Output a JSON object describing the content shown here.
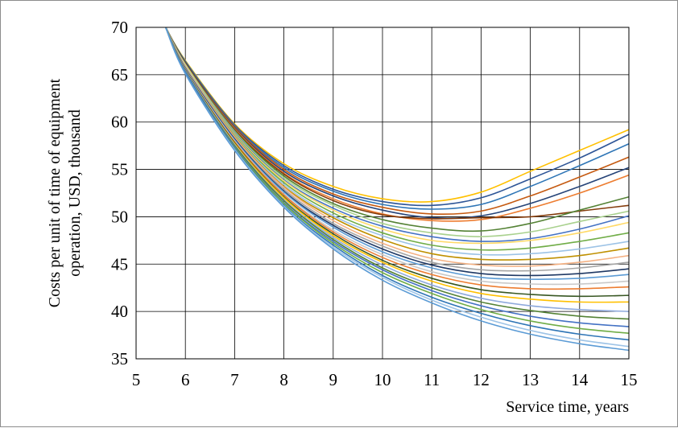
{
  "chart_data": {
    "type": "line",
    "xlabel": "Service time, years",
    "ylabel_line1": "Costs per unit of time of equipment",
    "ylabel_line2": "operation, USD, thousand",
    "xlim": [
      5,
      15
    ],
    "ylim": [
      35,
      70
    ],
    "xticks": [
      5,
      6,
      7,
      8,
      9,
      10,
      11,
      12,
      13,
      14,
      15
    ],
    "yticks": [
      35,
      40,
      45,
      50,
      55,
      60,
      65,
      70
    ],
    "grid": true,
    "legend": "none",
    "x": [
      5.6,
      6,
      7,
      8,
      9,
      10,
      11,
      12,
      13,
      14,
      15
    ],
    "series": [
      {
        "color": "#ffc000",
        "values": [
          70,
          66.5,
          59.8,
          55.6,
          53.2,
          51.9,
          51.6,
          52.6,
          54.8,
          57.0,
          59.2
        ]
      },
      {
        "color": "#2e5597",
        "values": [
          70,
          66.4,
          59.7,
          55.4,
          52.9,
          51.6,
          51.2,
          52.0,
          54.0,
          56.2,
          58.7
        ]
      },
      {
        "color": "#2e75b6",
        "values": [
          70,
          66.4,
          59.6,
          55.2,
          52.7,
          51.3,
          50.8,
          51.3,
          53.2,
          55.4,
          57.7
        ]
      },
      {
        "color": "#c55a11",
        "values": [
          70,
          66.3,
          59.5,
          55.0,
          52.4,
          51.0,
          50.3,
          50.6,
          52.2,
          54.2,
          56.3
        ]
      },
      {
        "color": "#264478",
        "values": [
          70,
          66.3,
          59.4,
          54.8,
          52.2,
          50.7,
          49.9,
          50.1,
          51.4,
          53.2,
          55.2
        ]
      },
      {
        "color": "#ed7d31",
        "values": [
          70,
          66.2,
          59.3,
          54.6,
          51.9,
          50.3,
          49.6,
          49.7,
          50.9,
          52.5,
          54.4
        ]
      },
      {
        "color": "#843c0c",
        "values": [
          70,
          66.2,
          59.2,
          54.5,
          51.7,
          50.2,
          49.8,
          49.9,
          50.0,
          50.6,
          51.2
        ]
      },
      {
        "color": "#548235",
        "values": [
          70,
          66.1,
          59.1,
          54.3,
          51.4,
          49.7,
          48.8,
          48.5,
          49.3,
          50.7,
          52.1
        ]
      },
      {
        "color": "#a9d18e",
        "values": [
          70,
          66.1,
          59.0,
          54.1,
          51.2,
          49.3,
          48.3,
          47.9,
          48.4,
          49.5,
          50.6
        ]
      },
      {
        "color": "#4472c4",
        "values": [
          70,
          66.0,
          58.9,
          53.9,
          50.9,
          49.0,
          47.9,
          47.4,
          47.7,
          48.7,
          50.1
        ]
      },
      {
        "color": "#ffd966",
        "values": [
          70,
          66.0,
          58.8,
          53.8,
          50.7,
          48.7,
          47.5,
          47.2,
          47.5,
          48.3,
          49.4
        ]
      },
      {
        "color": "#70ad47",
        "values": [
          70,
          65.9,
          58.7,
          53.6,
          50.4,
          48.3,
          47.0,
          46.5,
          46.7,
          47.4,
          48.3
        ]
      },
      {
        "color": "#9dc3e6",
        "values": [
          70,
          65.9,
          58.6,
          53.4,
          50.1,
          48.0,
          46.6,
          46.0,
          46.1,
          46.6,
          47.4
        ]
      },
      {
        "color": "#bf9000",
        "values": [
          70,
          65.8,
          58.5,
          53.2,
          49.9,
          47.6,
          46.1,
          45.5,
          45.5,
          45.9,
          46.7
        ]
      },
      {
        "color": "#f4b183",
        "values": [
          70,
          65.8,
          58.4,
          53.1,
          49.6,
          47.2,
          45.6,
          44.9,
          44.8,
          45.2,
          45.9
        ]
      },
      {
        "color": "#a5a5a5",
        "values": [
          70,
          65.7,
          58.3,
          52.9,
          49.3,
          46.9,
          45.2,
          44.4,
          44.3,
          44.6,
          45.2
        ]
      },
      {
        "color": "#1f3864",
        "values": [
          70,
          65.7,
          58.2,
          52.7,
          49.1,
          46.6,
          44.9,
          44.0,
          43.8,
          44.0,
          44.5
        ]
      },
      {
        "color": "#5b9bd5",
        "values": [
          70,
          65.6,
          58.1,
          52.6,
          48.9,
          46.3,
          44.6,
          43.6,
          43.4,
          43.5,
          43.9
        ]
      },
      {
        "color": "#c9c9c9",
        "values": [
          70,
          65.6,
          58.0,
          52.4,
          48.6,
          46.0,
          44.2,
          43.2,
          42.9,
          42.9,
          43.2
        ]
      },
      {
        "color": "#ed7d31",
        "values": [
          70,
          65.5,
          57.9,
          52.3,
          48.4,
          45.7,
          43.9,
          42.8,
          42.4,
          42.4,
          42.6
        ]
      },
      {
        "color": "#385723",
        "values": [
          70,
          65.5,
          57.8,
          52.1,
          48.2,
          45.4,
          43.5,
          42.3,
          41.8,
          41.6,
          41.7
        ]
      },
      {
        "color": "#ffc000",
        "values": [
          70,
          65.4,
          57.7,
          52.0,
          48.0,
          45.2,
          43.2,
          41.9,
          41.3,
          41.0,
          41.0
        ]
      },
      {
        "color": "#8faadc",
        "values": [
          70,
          65.4,
          57.6,
          51.8,
          47.8,
          44.9,
          42.8,
          41.4,
          40.6,
          40.2,
          40.0
        ]
      },
      {
        "color": "#548235",
        "values": [
          70,
          65.3,
          57.5,
          51.7,
          47.6,
          44.6,
          42.5,
          41.0,
          40.1,
          39.5,
          39.2
        ]
      },
      {
        "color": "#4472c4",
        "values": [
          70,
          65.3,
          57.4,
          51.5,
          47.4,
          44.4,
          42.2,
          40.6,
          39.5,
          38.8,
          38.4
        ]
      },
      {
        "color": "#70ad47",
        "values": [
          70,
          65.2,
          57.3,
          51.4,
          47.2,
          44.1,
          41.9,
          40.2,
          39.0,
          38.2,
          37.7
        ]
      },
      {
        "color": "#2e75b6",
        "values": [
          70,
          65.2,
          57.2,
          51.2,
          47.0,
          43.8,
          41.5,
          39.8,
          38.5,
          37.6,
          37.0
        ]
      },
      {
        "color": "#9dc3e6",
        "values": [
          70,
          65.1,
          57.1,
          51.1,
          46.8,
          43.6,
          41.2,
          39.4,
          38.0,
          37.0,
          36.3
        ]
      },
      {
        "color": "#5b9bd5",
        "values": [
          70,
          65.1,
          57.0,
          51.0,
          46.6,
          43.3,
          40.9,
          39.0,
          37.6,
          36.6,
          35.9
        ]
      }
    ]
  }
}
